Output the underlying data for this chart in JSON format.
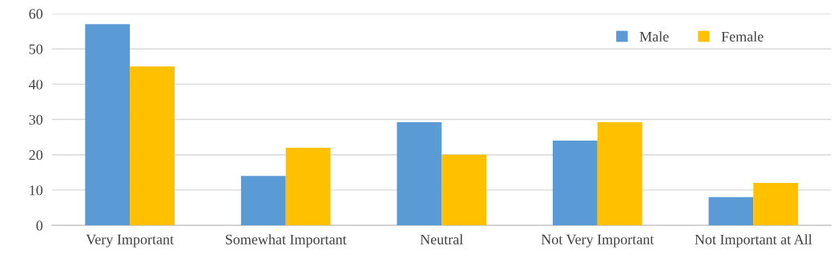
{
  "chart_data": {
    "type": "bar",
    "categories": [
      "Very Important",
      "Somewhat Important",
      "Neutral",
      "Not Very Important",
      "Not Important at All"
    ],
    "series": [
      {
        "name": "Male",
        "color": "#5b9bd5",
        "values": [
          57,
          14,
          29.2,
          24,
          8
        ]
      },
      {
        "name": "Female",
        "color": "#ffc000",
        "values": [
          45,
          22,
          20,
          29.2,
          12
        ]
      }
    ],
    "ylim": [
      0,
      60
    ],
    "yticks": [
      0,
      10,
      20,
      30,
      40,
      50,
      60
    ],
    "grid": "y",
    "legend": "top right"
  }
}
